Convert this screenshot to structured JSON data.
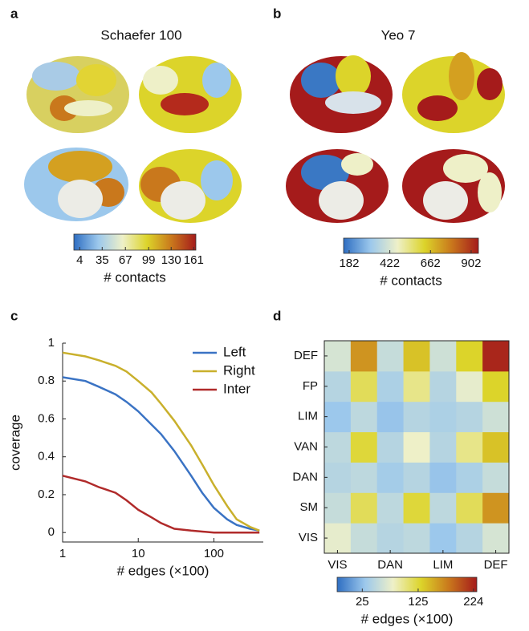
{
  "chart_data": [
    {
      "type": "colorbar",
      "panel": "a",
      "title": "Schaefer 100",
      "label": "# contacts",
      "xlim": [
        -4,
        164
      ],
      "xticks": [
        4,
        35,
        67,
        99,
        130,
        161
      ],
      "colormap": [
        "#2e6ec2",
        "#9cc8ec",
        "#eef0c8",
        "#dcd42a",
        "#c9781c",
        "#a51b1b"
      ]
    },
    {
      "type": "colorbar",
      "panel": "b",
      "title": "Yeo 7",
      "label": "# contacts",
      "xlim": [
        149,
        945
      ],
      "xticks": [
        182,
        422,
        662,
        902
      ],
      "colormap": [
        "#2e6ec2",
        "#9cc8ec",
        "#eef0c8",
        "#dcd42a",
        "#c9781c",
        "#a51b1b"
      ]
    },
    {
      "type": "line",
      "panel": "c",
      "xlabel": "# edges (×100)",
      "ylabel": "coverage",
      "log_x": true,
      "legend": "top-right",
      "x": [
        1,
        2,
        3,
        5,
        7,
        10,
        15,
        20,
        30,
        50,
        70,
        100,
        150,
        200,
        300,
        400
      ],
      "xlim": [
        1,
        450
      ],
      "xticks": [
        1,
        10,
        100
      ],
      "ylim": [
        -0.05,
        1
      ],
      "yticks": [
        0,
        0.2,
        0.4,
        0.6,
        0.8,
        1
      ],
      "series": [
        {
          "name": "Left",
          "color": "#3a73c4",
          "values": [
            0.82,
            0.8,
            0.77,
            0.73,
            0.69,
            0.64,
            0.57,
            0.52,
            0.43,
            0.3,
            0.21,
            0.13,
            0.07,
            0.04,
            0.02,
            0.01
          ]
        },
        {
          "name": "Right",
          "color": "#c9b02c",
          "values": [
            0.95,
            0.93,
            0.91,
            0.88,
            0.85,
            0.8,
            0.74,
            0.68,
            0.59,
            0.46,
            0.36,
            0.25,
            0.14,
            0.07,
            0.03,
            0.01
          ]
        },
        {
          "name": "Inter",
          "color": "#b02a2a",
          "values": [
            0.3,
            0.27,
            0.24,
            0.21,
            0.17,
            0.12,
            0.08,
            0.05,
            0.02,
            0.01,
            0.005,
            0,
            0,
            0,
            0,
            0
          ]
        }
      ]
    },
    {
      "type": "heatmap",
      "panel": "d",
      "xcategories": [
        "VIS",
        null,
        "DAN",
        null,
        "LIM",
        null,
        "DEF"
      ],
      "ycategories": [
        "VIS",
        "SM",
        "DAN",
        "VAN",
        "LIM",
        "FP",
        "DEF"
      ],
      "values": [
        [
          75,
          55,
          45,
          50,
          30,
          45,
          65
        ],
        [
          55,
          115,
          50,
          125,
          50,
          115,
          165
        ],
        [
          45,
          50,
          35,
          45,
          28,
          40,
          55
        ],
        [
          50,
          125,
          45,
          80,
          45,
          100,
          140
        ],
        [
          30,
          50,
          28,
          45,
          40,
          45,
          60
        ],
        [
          45,
          115,
          40,
          100,
          45,
          75,
          130
        ],
        [
          65,
          165,
          55,
          140,
          60,
          130,
          224
        ]
      ],
      "clim": [
        -20,
        230
      ],
      "cticks": [
        25,
        125,
        224
      ],
      "clabel": "# edges (×100)",
      "colormap": [
        "#2e6ec2",
        "#9cc8ec",
        "#eef0c8",
        "#dcd42a",
        "#c9781c",
        "#a51b1b"
      ]
    }
  ]
}
